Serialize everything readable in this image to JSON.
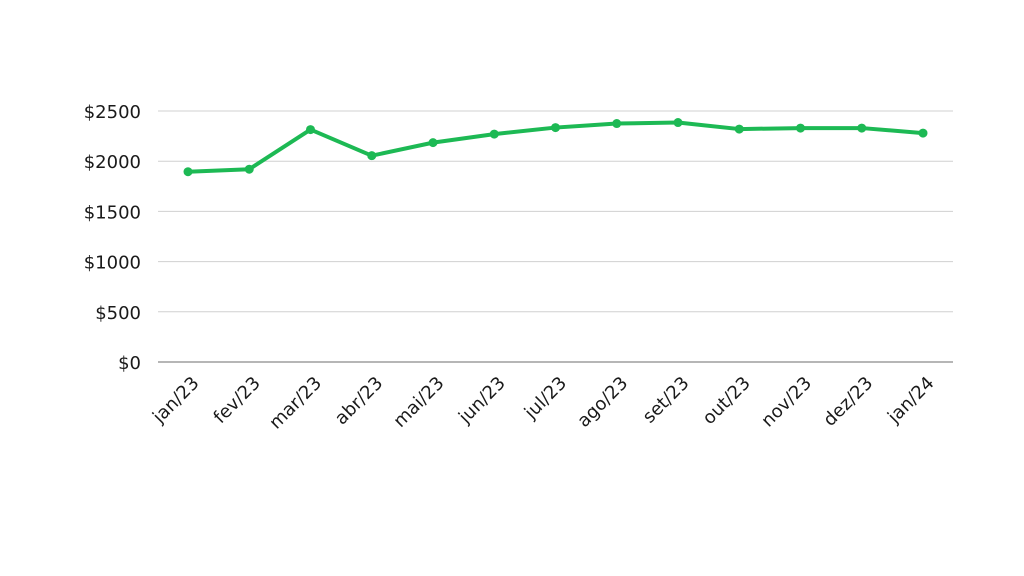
{
  "chart_data": {
    "type": "line",
    "title": "",
    "xlabel": "",
    "ylabel": "",
    "categories": [
      "jan/23",
      "fev/23",
      "mar/23",
      "abr/23",
      "mai/23",
      "jun/23",
      "jul/23",
      "ago/23",
      "set/23",
      "out/23",
      "nov/23",
      "dez/23",
      "jan/24"
    ],
    "series": [
      {
        "values": [
          1895,
          1920,
          2315,
          2055,
          2185,
          2270,
          2335,
          2375,
          2385,
          2320,
          2330,
          2330,
          2280
        ]
      }
    ],
    "ylim": [
      0,
      2500
    ],
    "y_ticks": [
      0,
      500,
      1000,
      1500,
      2000,
      2500
    ],
    "y_tick_labels": [
      "$0",
      "$500",
      "$1000",
      "$1500",
      "$2000",
      "$2500"
    ],
    "grid": true,
    "legend": "none",
    "colors": {
      "line": "#1db954",
      "grid": "#d0d0d0",
      "axis": "#8a8a8a",
      "text": "#1a1a1a"
    }
  }
}
